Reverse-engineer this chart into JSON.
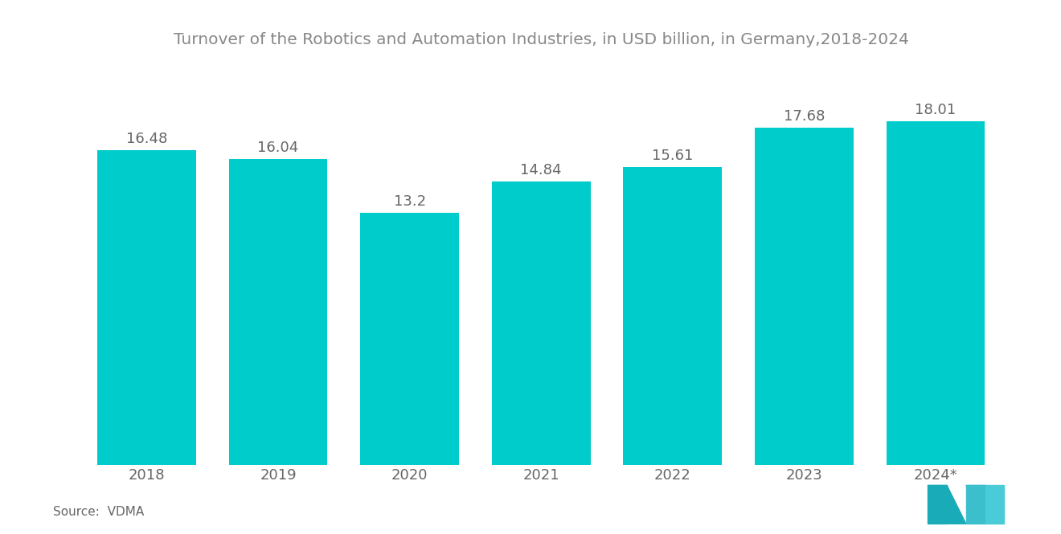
{
  "title": "Turnover of the Robotics and Automation Industries, in USD billion, in Germany,2018-2024",
  "categories": [
    "2018",
    "2019",
    "2020",
    "2021",
    "2022",
    "2023",
    "2024*"
  ],
  "values": [
    16.48,
    16.04,
    13.2,
    14.84,
    15.61,
    17.68,
    18.01
  ],
  "bar_color": "#00CCCC",
  "background_color": "#ffffff",
  "label_color": "#666666",
  "title_color": "#888888",
  "source_text": "Source:  VDMA",
  "ylim": [
    0,
    21
  ],
  "title_fontsize": 14.5,
  "label_fontsize": 13,
  "bar_label_fontsize": 13,
  "source_fontsize": 11
}
